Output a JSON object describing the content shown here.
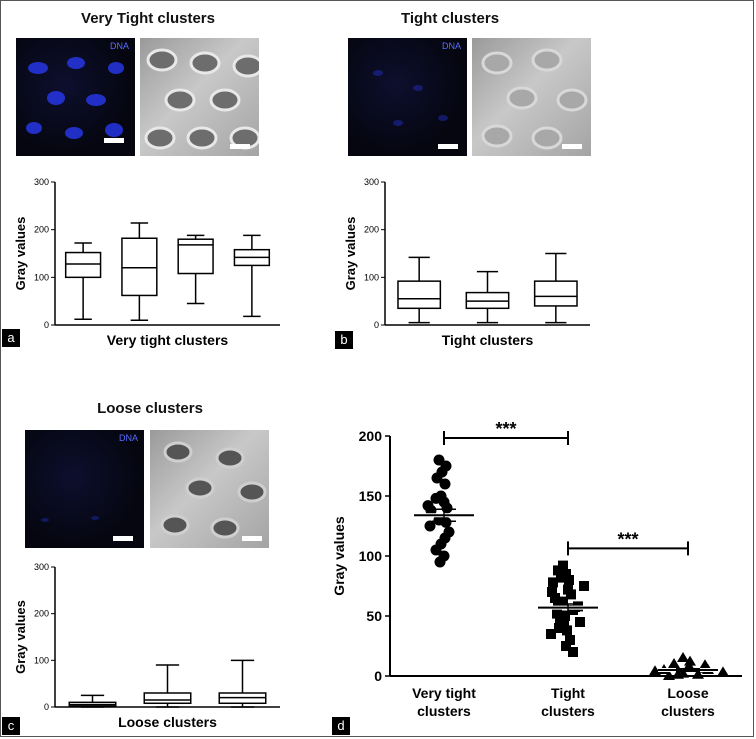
{
  "panels": {
    "a": {
      "letter": "a",
      "title": "Very Tight clusters",
      "dna_label": "DNA",
      "xlabel": "Very tight clusters",
      "ylabel": "Gray values"
    },
    "b": {
      "letter": "b",
      "title": "Tight clusters",
      "dna_label": "DNA",
      "xlabel": "Tight clusters",
      "ylabel": "Gray values"
    },
    "c": {
      "letter": "c",
      "title": "Loose clusters",
      "dna_label": "DNA",
      "xlabel": "Loose clusters",
      "ylabel": "Gray values"
    },
    "d": {
      "letter": "d",
      "ylabel": "Gray values",
      "categories": [
        "Very tight clusters",
        "Tight clusters",
        "Loose clusters"
      ],
      "significance": [
        "***",
        "***"
      ]
    }
  },
  "colors": {
    "dna": "#2a3cff",
    "sem": "#b5b5b5"
  },
  "chart_data": [
    {
      "type": "box",
      "panel": "a",
      "ylim": [
        0,
        300
      ],
      "yticks": [
        0,
        100,
        200,
        300
      ],
      "series": [
        {
          "min": 12,
          "q1": 100,
          "median": 128,
          "q3": 152,
          "max": 172
        },
        {
          "min": 10,
          "q1": 62,
          "median": 120,
          "q3": 182,
          "max": 214
        },
        {
          "min": 45,
          "q1": 108,
          "median": 168,
          "q3": 180,
          "max": 188
        },
        {
          "min": 18,
          "q1": 125,
          "median": 142,
          "q3": 158,
          "max": 188
        }
      ]
    },
    {
      "type": "box",
      "panel": "b",
      "ylim": [
        0,
        300
      ],
      "yticks": [
        0,
        100,
        200,
        300
      ],
      "series": [
        {
          "min": 5,
          "q1": 35,
          "median": 55,
          "q3": 92,
          "max": 142
        },
        {
          "min": 5,
          "q1": 35,
          "median": 50,
          "q3": 68,
          "max": 112
        },
        {
          "min": 5,
          "q1": 40,
          "median": 60,
          "q3": 92,
          "max": 150
        }
      ]
    },
    {
      "type": "box",
      "panel": "c",
      "ylim": [
        0,
        300
      ],
      "yticks": [
        0,
        100,
        200,
        300
      ],
      "series": [
        {
          "min": 0,
          "q1": 2,
          "median": 5,
          "q3": 10,
          "max": 25
        },
        {
          "min": 0,
          "q1": 8,
          "median": 15,
          "q3": 30,
          "max": 90
        },
        {
          "min": 0,
          "q1": 8,
          "median": 20,
          "q3": 30,
          "max": 100
        }
      ]
    },
    {
      "type": "scatter",
      "panel": "d",
      "ylim": [
        0,
        200
      ],
      "yticks": [
        0,
        50,
        100,
        150,
        200
      ],
      "series": [
        {
          "marker": "circle",
          "mean": 134,
          "sem": 5,
          "values": [
            180,
            175,
            170,
            165,
            160,
            150,
            148,
            145,
            142,
            140,
            138,
            130,
            128,
            125,
            120,
            115,
            110,
            105,
            100,
            95
          ]
        },
        {
          "marker": "square",
          "mean": 57,
          "sem": 3,
          "values": [
            92,
            88,
            85,
            82,
            80,
            78,
            75,
            72,
            70,
            68,
            65,
            62,
            60,
            58,
            55,
            52,
            50,
            48,
            45,
            42,
            40,
            38,
            35,
            30,
            25,
            20
          ]
        },
        {
          "marker": "triangle",
          "mean": 5,
          "sem": 1,
          "values": [
            15,
            12,
            10,
            9,
            8,
            7,
            6,
            5,
            5,
            4,
            3,
            2,
            1,
            1,
            0
          ]
        }
      ]
    }
  ]
}
